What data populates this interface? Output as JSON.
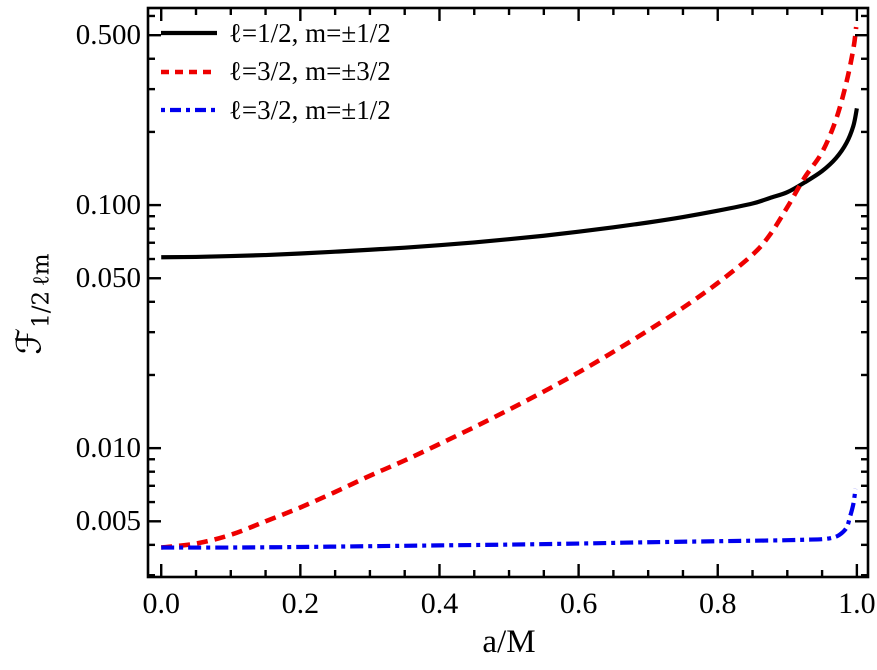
{
  "figure": {
    "ylabel_main": "ℱ",
    "ylabel_sub": "1/2 ℓm",
    "background": "#ffffff",
    "frame_color": "#000000"
  },
  "chart_data": {
    "type": "line",
    "title": "",
    "xlabel": "a/M",
    "ylabel": "F_{1/2 lm}",
    "y_scale": "log",
    "grid": false,
    "legend_position": "top-left",
    "xlim": [
      -0.019,
      1.016
    ],
    "ylim": [
      0.00295,
      0.647
    ],
    "x_ticks": [
      0.0,
      0.2,
      0.4,
      0.6,
      0.8,
      1.0
    ],
    "x_tick_labels": [
      "0.0",
      "0.2",
      "0.4",
      "0.6",
      "0.8",
      "1.0"
    ],
    "x_minor_ticks": [
      0.05,
      0.1,
      0.15,
      0.25,
      0.3,
      0.35,
      0.45,
      0.5,
      0.55,
      0.65,
      0.7,
      0.75,
      0.85,
      0.9,
      0.95
    ],
    "y_ticks": [
      0.5,
      0.1,
      0.05,
      0.01,
      0.005
    ],
    "y_tick_labels": [
      "0.500",
      "0.100",
      "0.050",
      "0.010",
      "0.005"
    ],
    "y_minor_ticks": [
      0.6,
      0.4,
      0.3,
      0.2,
      0.09,
      0.08,
      0.07,
      0.06,
      0.04,
      0.03,
      0.02,
      0.009,
      0.008,
      0.007,
      0.006,
      0.004,
      0.003
    ],
    "series": [
      {
        "id": "l-half-m-half",
        "name": "ℓ=1/2, m=±1/2",
        "color": "#000000",
        "style": "solid",
        "x": [
          0,
          0.05,
          0.1,
          0.15,
          0.2,
          0.25,
          0.3,
          0.35,
          0.4,
          0.45,
          0.5,
          0.55,
          0.6,
          0.65,
          0.7,
          0.75,
          0.8,
          0.85,
          0.875,
          0.9,
          0.925,
          0.95,
          0.97,
          0.985,
          0.995,
          1.0
        ],
        "y": [
          0.061,
          0.0612,
          0.0617,
          0.0623,
          0.0632,
          0.0643,
          0.0655,
          0.0668,
          0.0684,
          0.0702,
          0.0724,
          0.0748,
          0.0777,
          0.081,
          0.0848,
          0.0893,
          0.0948,
          0.1015,
          0.107,
          0.113,
          0.124,
          0.138,
          0.156,
          0.18,
          0.212,
          0.25
        ]
      },
      {
        "id": "l-3half-m-3half",
        "name": "ℓ=3/2, m=±3/2",
        "color": "#ee0000",
        "style": "dashed",
        "x": [
          0,
          0.05,
          0.1,
          0.15,
          0.2,
          0.25,
          0.3,
          0.35,
          0.4,
          0.45,
          0.5,
          0.55,
          0.6,
          0.65,
          0.7,
          0.75,
          0.8,
          0.85,
          0.875,
          0.9,
          0.925,
          0.95,
          0.97,
          0.985,
          0.995,
          0.999
        ],
        "y": [
          0.0039,
          0.00405,
          0.0044,
          0.005,
          0.0057,
          0.0066,
          0.0077,
          0.0089,
          0.0104,
          0.0122,
          0.0144,
          0.0171,
          0.0205,
          0.0249,
          0.0305,
          0.0378,
          0.0478,
          0.0625,
          0.0755,
          0.098,
          0.13,
          0.165,
          0.225,
          0.32,
          0.44,
          0.54
        ]
      },
      {
        "id": "l-3half-m-half",
        "name": "ℓ=3/2, m=±1/2",
        "color": "#0000ee",
        "style": "dashdot",
        "x": [
          0,
          0.1,
          0.2,
          0.3,
          0.4,
          0.5,
          0.6,
          0.7,
          0.8,
          0.85,
          0.9,
          0.925,
          0.95,
          0.965,
          0.975,
          0.985,
          0.99,
          0.995,
          0.998
        ],
        "y": [
          0.0039,
          0.0039,
          0.00392,
          0.00395,
          0.00398,
          0.00401,
          0.00405,
          0.0041,
          0.00414,
          0.00416,
          0.00418,
          0.0042,
          0.00422,
          0.00428,
          0.0044,
          0.0047,
          0.0052,
          0.0059,
          0.0068
        ]
      }
    ]
  }
}
